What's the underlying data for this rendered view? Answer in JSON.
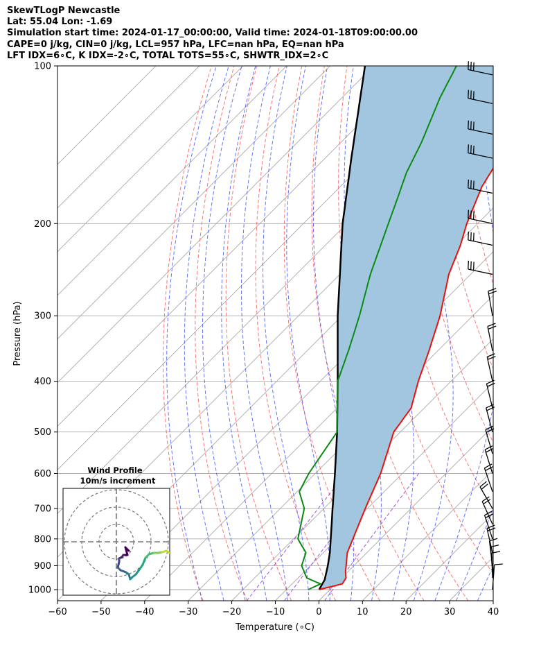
{
  "header": {
    "line1": "SkewTLogP Newcastle",
    "line2": "Lat: 55.04   Lon: -1.69",
    "line3": "Simulation start time: 2024-01-17_00:00:00, Valid time: 2024-01-18T09:00:00.00",
    "line4": "CAPE=0 j/kg, CIN=0 j/kg, LCL=957 hPa, LFC=nan hPa, EQ=nan hPa",
    "line5": "LFT IDX=6∘C, K IDX=-2∘C, TOTAL TOTS=55∘C, SHWTR_IDX=2∘C"
  },
  "colors": {
    "temperature": "#e8120c",
    "dewpoint": "#0a8a12",
    "parcel": "#000000",
    "cape_fill": "#a2c6e0",
    "dry_adiabat": "#ff5a5a",
    "moist_adiabat": "#3c50ff",
    "mixing_ratio": "#8a2be2",
    "isotherm": "#aaaaaa"
  },
  "chart_data": {
    "type": "line",
    "title": "",
    "xlabel": "Temperature (∘C)",
    "ylabel": "Pressure (hPa)",
    "xlim": [
      -60,
      40
    ],
    "ylim": [
      1050,
      100
    ],
    "y_scale": "log",
    "skew": "45 degree isotherms",
    "grid": true,
    "x_ticks": [
      "−60",
      "−50",
      "−40",
      "−30",
      "−20",
      "−10",
      "0",
      "10",
      "20",
      "30",
      "40"
    ],
    "y_ticks": [
      "100",
      "200",
      "300",
      "400",
      "500",
      "600",
      "700",
      "800",
      "900",
      "1000"
    ],
    "series": [
      {
        "role": "temperature",
        "points": [
          [
            1000,
            -2.5
          ],
          [
            975,
            1.5
          ],
          [
            950,
            1.0
          ],
          [
            925,
            -0.5
          ],
          [
            850,
            -4.5
          ],
          [
            700,
            -10.5
          ],
          [
            600,
            -15.0
          ],
          [
            500,
            -21.5
          ],
          [
            450,
            -23.0
          ],
          [
            400,
            -27.5
          ],
          [
            350,
            -32.0
          ],
          [
            300,
            -37.5
          ],
          [
            250,
            -45.0
          ],
          [
            220,
            -49.0
          ],
          [
            200,
            -52.5
          ],
          [
            170,
            -57.5
          ],
          [
            150,
            -60.0
          ],
          [
            130,
            -61.0
          ],
          [
            115,
            -62.0
          ],
          [
            100,
            -63.0
          ]
        ]
      },
      {
        "role": "dewpoint",
        "points": [
          [
            1000,
            -5.0
          ],
          [
            975,
            -3.5
          ],
          [
            950,
            -8.0
          ],
          [
            900,
            -12.0
          ],
          [
            850,
            -14.0
          ],
          [
            800,
            -19.0
          ],
          [
            700,
            -24.5
          ],
          [
            650,
            -29.5
          ],
          [
            600,
            -31.5
          ],
          [
            500,
            -34.5
          ],
          [
            400,
            -46.0
          ],
          [
            350,
            -50.5
          ],
          [
            300,
            -56.0
          ],
          [
            250,
            -63.0
          ],
          [
            200,
            -70.5
          ],
          [
            180,
            -74.0
          ],
          [
            160,
            -78.0
          ],
          [
            140,
            -81.5
          ],
          [
            115,
            -87.5
          ],
          [
            100,
            -91.0
          ]
        ]
      },
      {
        "role": "parcel",
        "points": [
          [
            1000,
            -2.5
          ],
          [
            957,
            -3.5
          ],
          [
            900,
            -6.0
          ],
          [
            850,
            -8.5
          ],
          [
            700,
            -18.0
          ],
          [
            600,
            -25.5
          ],
          [
            500,
            -34.5
          ],
          [
            400,
            -46.0
          ],
          [
            300,
            -61.0
          ],
          [
            250,
            -70.0
          ],
          [
            200,
            -81.0
          ],
          [
            150,
            -94.0
          ],
          [
            100,
            -112.0
          ]
        ]
      }
    ],
    "wind_barbs_pressure": [
      1000,
      950,
      925,
      900,
      850,
      800,
      750,
      700,
      650,
      600,
      550,
      500,
      450,
      400,
      350,
      300,
      250,
      220,
      200,
      175,
      150,
      135,
      118,
      104
    ],
    "wind_profile": {
      "title": "Wind Profile",
      "subtitle": "10m/s increment"
    }
  }
}
